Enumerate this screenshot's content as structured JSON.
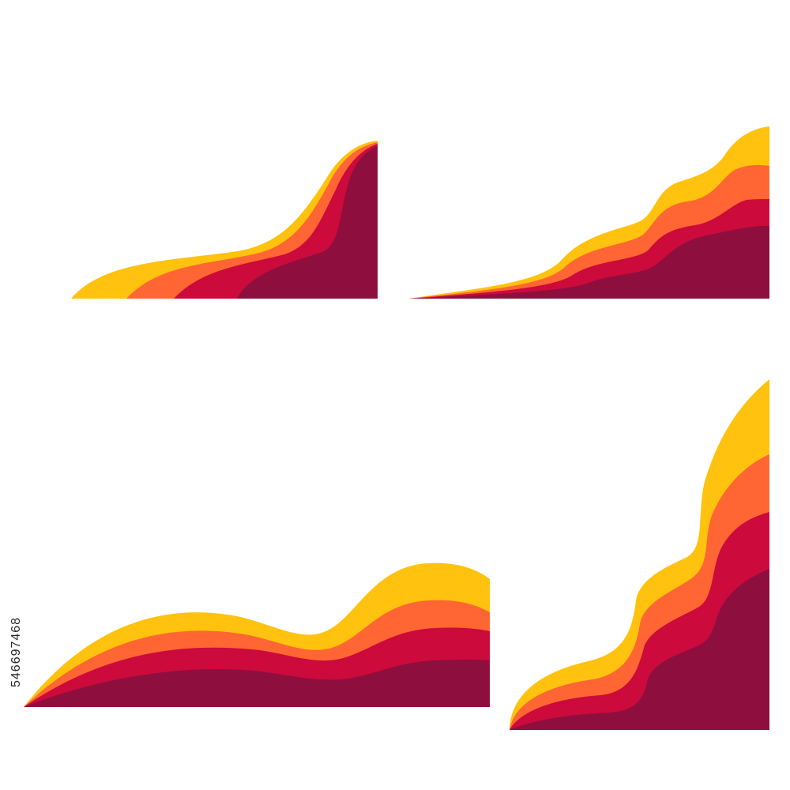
{
  "palette": {
    "yellow": "#FFC20E",
    "orange": "#FF6633",
    "red": "#CC0A3C",
    "maroon": "#8E0F3E"
  },
  "stock_id": "546697468"
}
